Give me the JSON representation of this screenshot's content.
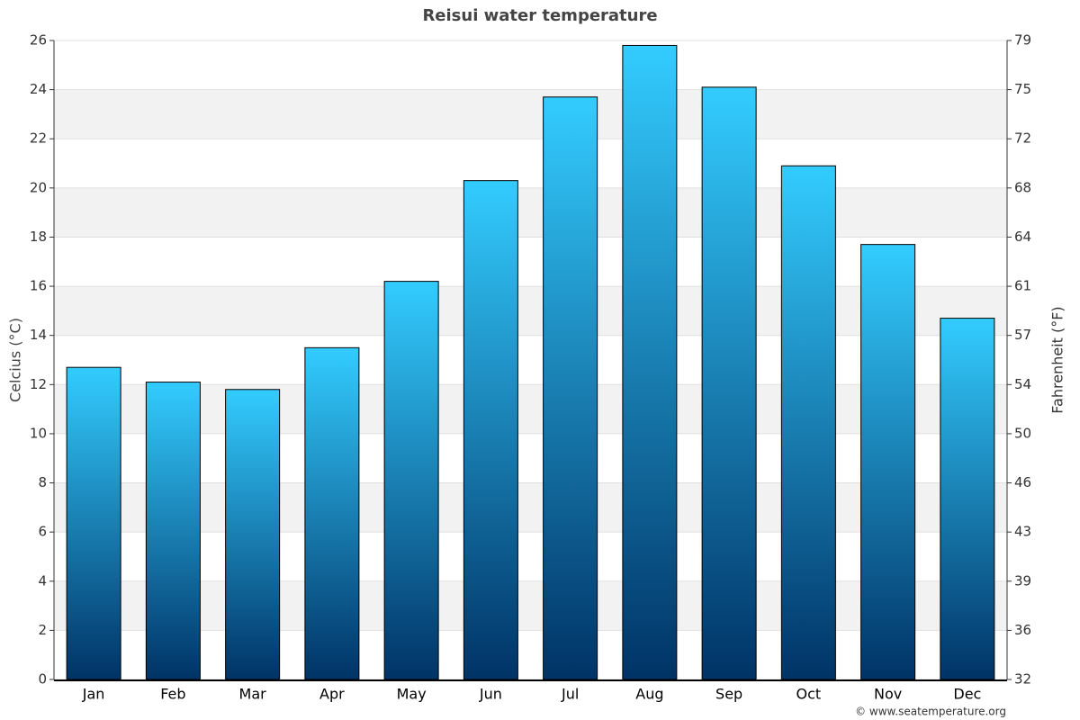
{
  "chart_data": {
    "type": "bar",
    "title": "Reisui water temperature",
    "categories": [
      "Jan",
      "Feb",
      "Mar",
      "Apr",
      "May",
      "Jun",
      "Jul",
      "Aug",
      "Sep",
      "Oct",
      "Nov",
      "Dec"
    ],
    "values": [
      12.7,
      12.1,
      11.8,
      13.5,
      16.2,
      20.3,
      23.7,
      25.8,
      24.1,
      20.9,
      17.7,
      14.7
    ],
    "gradient": [
      "#33ccff",
      "#003366"
    ],
    "ylabel": "Celcius (°C)",
    "y2label": "Fahrenheit (°F)",
    "ylim": [
      0,
      26
    ],
    "yticks": [
      0,
      2,
      4,
      6,
      8,
      10,
      12,
      14,
      16,
      18,
      20,
      22,
      24,
      26
    ],
    "y2lim": [
      32,
      78.8
    ],
    "y2ticks": [
      32,
      {
        "value": 35.6,
        "label": "36"
      },
      {
        "value": 39.2,
        "label": "39"
      },
      {
        "value": 42.8,
        "label": "43"
      },
      {
        "value": 46.4,
        "label": "46"
      },
      50,
      {
        "value": 53.6,
        "label": "54"
      },
      {
        "value": 57.2,
        "label": "57"
      },
      {
        "value": 60.8,
        "label": "61"
      },
      {
        "value": 64.4,
        "label": "64"
      },
      68,
      {
        "value": 71.6,
        "label": "72"
      },
      {
        "value": 75.2,
        "label": "75"
      },
      {
        "value": 78.8,
        "label": "79"
      }
    ],
    "grid": true,
    "credit": "© www.seatemperature.org"
  }
}
